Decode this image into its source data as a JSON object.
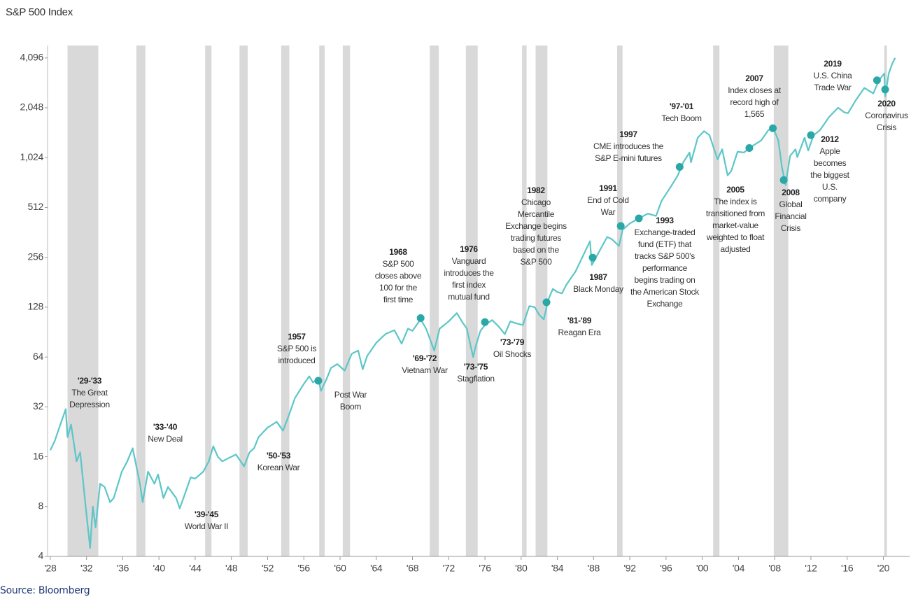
{
  "chart_data": {
    "type": "line",
    "title": "S&P 500 Index",
    "source": "Source: Bloomberg",
    "log_scale": true,
    "color": "#5cc6c8",
    "marker_color": "#2aa7a7",
    "shade_color": "#d9d9d9",
    "xlim": [
      1927.7,
      2022.9
    ],
    "ylim": [
      4,
      4870
    ],
    "xticks": [
      {
        "value": 1928,
        "label": "'28"
      },
      {
        "value": 1932,
        "label": "'32"
      },
      {
        "value": 1936,
        "label": "'36"
      },
      {
        "value": 1940,
        "label": "'40"
      },
      {
        "value": 1944,
        "label": "'44"
      },
      {
        "value": 1948,
        "label": "'48"
      },
      {
        "value": 1952,
        "label": "'52"
      },
      {
        "value": 1956,
        "label": "'56"
      },
      {
        "value": 1960,
        "label": "'60"
      },
      {
        "value": 1964,
        "label": "'64"
      },
      {
        "value": 1968,
        "label": "'68"
      },
      {
        "value": 1972,
        "label": "'72"
      },
      {
        "value": 1976,
        "label": "'76"
      },
      {
        "value": 1980,
        "label": "'80"
      },
      {
        "value": 1984,
        "label": "'84"
      },
      {
        "value": 1988,
        "label": "'88"
      },
      {
        "value": 1992,
        "label": "'92"
      },
      {
        "value": 1996,
        "label": "'96"
      },
      {
        "value": 2000,
        "label": "'00"
      },
      {
        "value": 2004,
        "label": "'04"
      },
      {
        "value": 2008,
        "label": "'08"
      },
      {
        "value": 2012,
        "label": "'12"
      },
      {
        "value": 2016,
        "label": "'16"
      },
      {
        "value": 2020,
        "label": "'20"
      }
    ],
    "yticks": [
      4,
      8,
      16,
      32,
      64,
      128,
      256,
      512,
      {
        "value": 1024,
        "label": "1,024"
      },
      {
        "value": 2048,
        "label": "2,048"
      },
      {
        "value": 4096,
        "label": "4,096"
      }
    ],
    "shaded_periods": [
      [
        1929.9,
        1933.3
      ],
      [
        1937.5,
        1938.5
      ],
      [
        1945.1,
        1945.8
      ],
      [
        1948.9,
        1949.8
      ],
      [
        1953.5,
        1954.4
      ],
      [
        1957.7,
        1958.3
      ],
      [
        1960.3,
        1961.1
      ],
      [
        1969.9,
        1970.9
      ],
      [
        1973.9,
        1975.2
      ],
      [
        1980.1,
        1980.6
      ],
      [
        1981.6,
        1982.9
      ],
      [
        1990.6,
        1991.2
      ],
      [
        2001.2,
        2001.9
      ],
      [
        2007.9,
        2009.5
      ],
      [
        2020.1,
        2020.4
      ]
    ],
    "x": [
      1928.0,
      1928.5,
      1929.0,
      1929.7,
      1929.9,
      1930.3,
      1930.9,
      1931.3,
      1931.9,
      1932.4,
      1932.7,
      1933.0,
      1933.5,
      1934.0,
      1934.6,
      1935.0,
      1935.9,
      1936.5,
      1937.1,
      1937.9,
      1938.2,
      1938.8,
      1939.5,
      1939.9,
      1940.5,
      1941.0,
      1941.9,
      1942.3,
      1943.0,
      1943.5,
      1944.0,
      1944.9,
      1945.5,
      1946.0,
      1946.5,
      1947.0,
      1947.5,
      1948.5,
      1949.4,
      1950.0,
      1950.5,
      1951.0,
      1952.0,
      1953.0,
      1953.7,
      1954.5,
      1955.0,
      1956.0,
      1956.6,
      1957.0,
      1957.6,
      1957.9,
      1958.5,
      1959.0,
      1959.7,
      1960.5,
      1961.3,
      1962.0,
      1962.5,
      1963.0,
      1964.0,
      1965.0,
      1966.0,
      1966.8,
      1967.5,
      1968.0,
      1968.9,
      1969.5,
      1970.4,
      1971.0,
      1972.0,
      1972.9,
      1973.5,
      1974.0,
      1974.7,
      1975.0,
      1975.5,
      1976.0,
      1976.8,
      1977.5,
      1978.2,
      1978.8,
      1979.5,
      1980.2,
      1980.9,
      1981.5,
      1982.0,
      1982.5,
      1983.0,
      1983.5,
      1984.0,
      1984.5,
      1985.0,
      1986.0,
      1987.6,
      1987.8,
      1988.5,
      1989.5,
      1990.0,
      1990.8,
      1991.2,
      1992.0,
      1993.0,
      1994.0,
      1994.9,
      1995.5,
      1996.5,
      1997.3,
      1997.9,
      1998.6,
      1998.75,
      1999.5,
      2000.2,
      2000.8,
      2001.2,
      2001.7,
      2002.2,
      2002.8,
      2003.2,
      2003.9,
      2004.6,
      2005.5,
      2006.5,
      2007.3,
      2007.8,
      2008.4,
      2008.8,
      2009.2,
      2009.7,
      2010.3,
      2010.5,
      2011.3,
      2011.7,
      2012.3,
      2013.0,
      2014.0,
      2015.0,
      2015.7,
      2016.1,
      2016.9,
      2017.9,
      2018.9,
      2019.5,
      2020.1,
      2020.2,
      2020.6,
      2021.0,
      2021.3
    ],
    "values": [
      17.5,
      20,
      24,
      31,
      21,
      25,
      15,
      17,
      8,
      4.5,
      8,
      6,
      11,
      10.5,
      8.5,
      9,
      13,
      15,
      18,
      11,
      8.5,
      13,
      11,
      12.5,
      9,
      10.5,
      9,
      7.8,
      10,
      12,
      11.8,
      13,
      15,
      18.5,
      16,
      15,
      15.5,
      16.5,
      14,
      17,
      18,
      21,
      24,
      26,
      23,
      30,
      36,
      44,
      49,
      45,
      47,
      40,
      47,
      55,
      58,
      53,
      67,
      70,
      54,
      65,
      78,
      88,
      93,
      77,
      95,
      92,
      108,
      95,
      70,
      95,
      105,
      118,
      104,
      95,
      64,
      75,
      92,
      100,
      107,
      98,
      88,
      105,
      102,
      100,
      130,
      128,
      115,
      108,
      142,
      165,
      158,
      155,
      175,
      210,
      320,
      230,
      270,
      340,
      330,
      300,
      375,
      410,
      440,
      470,
      455,
      560,
      680,
      800,
      960,
      1100,
      960,
      1350,
      1480,
      1400,
      1200,
      1000,
      1150,
      800,
      850,
      1110,
      1100,
      1200,
      1300,
      1500,
      1565,
      1300,
      900,
      700,
      1050,
      1150,
      1030,
      1350,
      1130,
      1400,
      1500,
      1800,
      2050,
      1920,
      1900,
      2250,
      2700,
      2500,
      3000,
      3300,
      2400,
      3300,
      3800,
      4100
    ],
    "events": {
      "x": [
        1957.6,
        1968.9,
        1976.0,
        1982.8,
        1987.9,
        1991.0,
        1993.0,
        1997.5,
        2005.2,
        2007.8,
        2009.0,
        2012.0,
        2019.3,
        2020.2
      ],
      "values": [
        46,
        110,
        104,
        137,
        255,
        396,
        440,
        900,
        1170,
        1540,
        750,
        1400,
        3000,
        2640
      ]
    },
    "annotations": [
      {
        "title": "'29-'33",
        "lines": [
          "The Great",
          "Depression"
        ]
      },
      {
        "title": "'33-'40",
        "lines": [
          "New Deal"
        ]
      },
      {
        "title": "'39-'45",
        "lines": [
          "World War II"
        ]
      },
      {
        "title": "'50-'53",
        "lines": [
          "Korean War"
        ]
      },
      {
        "title": "1957",
        "lines": [
          "S&P 500 is",
          "introduced"
        ]
      },
      {
        "lines": [
          "Post War",
          "Boom"
        ]
      },
      {
        "title": "1968",
        "lines": [
          "S&P 500",
          "closes above",
          "100 for the",
          "first time"
        ]
      },
      {
        "title": "'69-'72",
        "lines": [
          "Vietnam War"
        ]
      },
      {
        "title": "1976",
        "lines": [
          "Vanguard",
          "introduces the",
          "first index",
          "mutual fund"
        ]
      },
      {
        "title": "'73-'75",
        "lines": [
          "Stagflation"
        ]
      },
      {
        "title": "'73-'79",
        "lines": [
          "Oil Shocks"
        ]
      },
      {
        "title": "1982",
        "lines": [
          "Chicago",
          "Mercantile",
          "Exchange begins",
          "trading futures",
          "based on the",
          "S&P 500"
        ]
      },
      {
        "title": "'81-'89",
        "lines": [
          "Reagan Era"
        ]
      },
      {
        "title": "1987",
        "lines": [
          "Black Monday"
        ]
      },
      {
        "title": "1991",
        "lines": [
          "End of Cold",
          "War"
        ]
      },
      {
        "title": "1993",
        "lines": [
          "Exchange-traded",
          "fund  (ETF) that",
          "tracks S&P 500's",
          "performance",
          "begins trading on",
          "the American Stock",
          "Exchange"
        ]
      },
      {
        "title": "1997",
        "lines": [
          "CME introduces the",
          "S&P E-mini futures"
        ]
      },
      {
        "title": "'97-'01",
        "lines": [
          "Tech Boom"
        ]
      },
      {
        "title": "2005",
        "lines": [
          "The index is",
          "transitioned from",
          "market-value",
          "weighted to float",
          "adjusted"
        ]
      },
      {
        "title": "2007",
        "lines": [
          "Index closes at",
          "record high of",
          "1,565"
        ]
      },
      {
        "title": "2008",
        "lines": [
          "Global",
          "Financial",
          "Crisis"
        ]
      },
      {
        "title": "2012",
        "lines": [
          "Apple",
          "becomes",
          "the biggest",
          "U.S.",
          "company"
        ]
      },
      {
        "title": "2019",
        "lines": [
          "U.S. China",
          "Trade War"
        ]
      },
      {
        "title": "2020",
        "lines": [
          "Coronavirus",
          "Crisis"
        ]
      }
    ]
  }
}
